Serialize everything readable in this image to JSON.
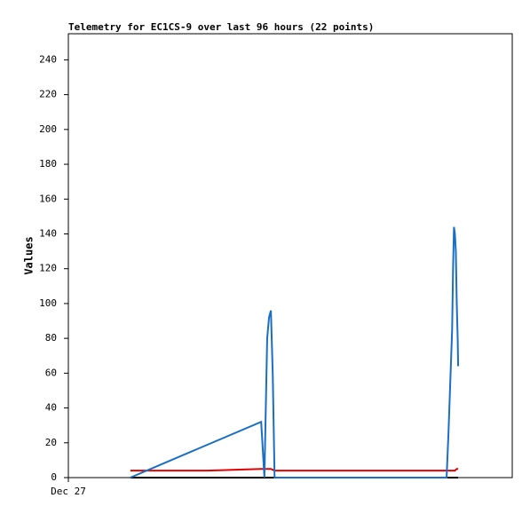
{
  "chart_data": {
    "type": "line",
    "title": "Telemetry for EC1CS-9 over last 96 hours (22 points)",
    "y_label": "Values",
    "x": [
      13.4,
      20,
      30,
      41.7,
      42.4,
      43.0,
      43.4,
      43.8,
      44.2,
      44.6,
      60,
      81.8,
      82.2,
      82.6,
      83.0,
      83.2,
      83.4,
      83.6,
      83.8,
      84.0,
      84.2,
      84.3
    ],
    "series": [
      {
        "color": "#000000",
        "values": [
          0,
          0,
          0,
          0,
          0,
          0,
          0,
          0,
          0,
          0,
          0,
          0,
          0,
          0,
          0,
          0,
          0,
          0,
          0,
          0,
          0,
          0
        ]
      },
      {
        "color": "#e00000",
        "values": [
          4,
          4,
          4,
          5,
          5,
          5,
          5,
          5,
          4.5,
          4,
          4,
          4,
          4,
          4,
          4,
          4,
          4,
          4,
          4.5,
          5,
          5,
          5
        ]
      },
      {
        "color": "#1a6fc4",
        "values": [
          0,
          7.5,
          18.8,
          32,
          0,
          80,
          92,
          96,
          60,
          0,
          0,
          0,
          25,
          55,
          85,
          120,
          144,
          140,
          130,
          100,
          80,
          64
        ]
      }
    ],
    "xlim": [
      0,
      96
    ],
    "xticks": [
      {
        "value": 0,
        "label": "Dec 27"
      }
    ],
    "ylim": [
      0,
      255
    ],
    "yticks": [
      0,
      20,
      40,
      60,
      80,
      100,
      120,
      140,
      160,
      180,
      200,
      220,
      240
    ]
  }
}
